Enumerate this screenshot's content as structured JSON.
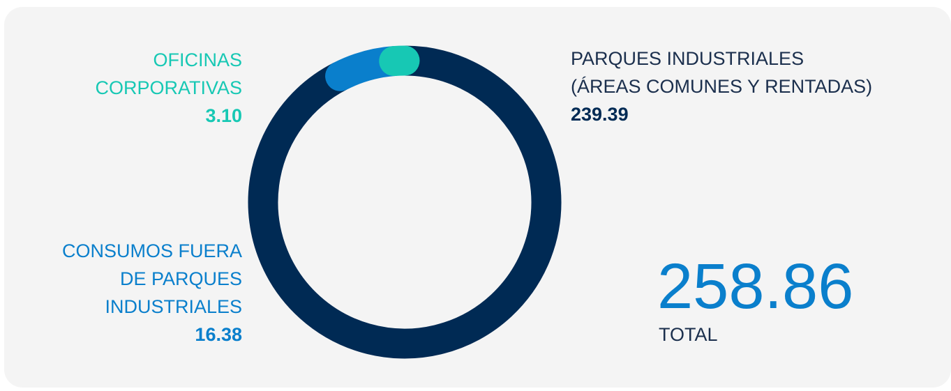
{
  "chart_data": {
    "type": "donut",
    "categories": [
      "PARQUES INDUSTRIALES\n(ÁREAS COMUNES Y RENTADAS)",
      "CONSUMOS FUERA\nDE PARQUES\nINDUSTRIALES",
      "OFICINAS\nCORPORATIVAS"
    ],
    "values": [
      239.39,
      16.38,
      3.1
    ],
    "value_labels": [
      "239.39",
      "16.38",
      "3.10"
    ],
    "colors": [
      "#002a54",
      "#0a7fcc",
      "#17c8b4"
    ],
    "total": 258.86,
    "total_label": "TOTAL"
  }
}
